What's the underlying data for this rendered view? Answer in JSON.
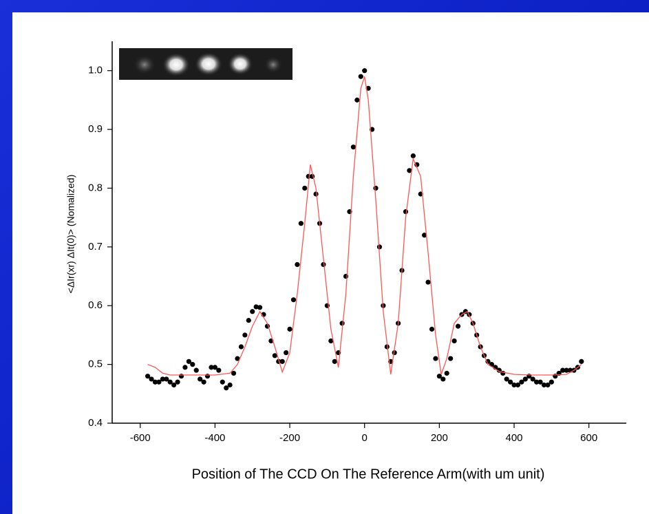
{
  "chart_data": {
    "type": "scatter",
    "x_label": "Position of The CCD On The Reference Arm(with um unit)",
    "y_label": "<ΔIr(xr) ΔIt(0)> (Nomalized)",
    "xlim": [
      -675,
      700
    ],
    "ylim": [
      0.4,
      1.05
    ],
    "xticks": [
      -600,
      -400,
      -200,
      0,
      200,
      400,
      600
    ],
    "yticks": [
      0.4,
      0.5,
      0.6,
      0.7,
      0.8,
      0.9,
      {
        "value": 1,
        "label": "1.0"
      }
    ],
    "series": [
      {
        "type": "scatter",
        "color": "#000000",
        "x": [
          -580,
          -570,
          -560,
          -550,
          -540,
          -530,
          -520,
          -510,
          -500,
          -490,
          -480,
          -470,
          -460,
          -450,
          -440,
          -430,
          -420,
          -410,
          -400,
          -390,
          -380,
          -370,
          -360,
          -350,
          -340,
          -330,
          -320,
          -310,
          -300,
          -290,
          -280,
          -270,
          -260,
          -250,
          -240,
          -230,
          -220,
          -210,
          -200,
          -190,
          -180,
          -170,
          -160,
          -150,
          -140,
          -130,
          -120,
          -110,
          -100,
          -90,
          -80,
          -70,
          -60,
          -50,
          -40,
          -30,
          -20,
          -10,
          0,
          10,
          20,
          30,
          40,
          50,
          60,
          70,
          80,
          90,
          100,
          110,
          120,
          130,
          140,
          150,
          160,
          170,
          180,
          190,
          200,
          210,
          220,
          230,
          240,
          250,
          260,
          270,
          280,
          290,
          300,
          310,
          320,
          330,
          340,
          350,
          360,
          370,
          380,
          390,
          400,
          410,
          420,
          430,
          440,
          450,
          460,
          470,
          480,
          490,
          500,
          510,
          520,
          530,
          540,
          550,
          560,
          570,
          580
        ],
        "values": [
          0.48,
          0.475,
          0.47,
          0.47,
          0.475,
          0.475,
          0.47,
          0.465,
          0.47,
          0.48,
          0.495,
          0.505,
          0.5,
          0.49,
          0.475,
          0.47,
          0.48,
          0.495,
          0.495,
          0.49,
          0.47,
          0.46,
          0.465,
          0.485,
          0.51,
          0.53,
          0.55,
          0.575,
          0.59,
          0.598,
          0.597,
          0.585,
          0.565,
          0.54,
          0.515,
          0.505,
          0.505,
          0.52,
          0.56,
          0.61,
          0.67,
          0.74,
          0.8,
          0.82,
          0.82,
          0.79,
          0.74,
          0.67,
          0.6,
          0.54,
          0.505,
          0.52,
          0.57,
          0.65,
          0.76,
          0.87,
          0.95,
          0.99,
          1.0,
          0.97,
          0.9,
          0.8,
          0.7,
          0.6,
          0.53,
          0.505,
          0.52,
          0.57,
          0.66,
          0.76,
          0.83,
          0.855,
          0.84,
          0.79,
          0.72,
          0.64,
          0.56,
          0.51,
          0.48,
          0.475,
          0.485,
          0.51,
          0.54,
          0.565,
          0.585,
          0.59,
          0.585,
          0.57,
          0.55,
          0.53,
          0.515,
          0.505,
          0.5,
          0.495,
          0.49,
          0.485,
          0.475,
          0.47,
          0.465,
          0.465,
          0.47,
          0.475,
          0.48,
          0.475,
          0.47,
          0.47,
          0.465,
          0.465,
          0.47,
          0.48,
          0.485,
          0.49,
          0.49,
          0.49,
          0.49,
          0.495,
          0.505
        ]
      },
      {
        "type": "line",
        "color": "#ff5555",
        "x": [
          -580,
          -560,
          -540,
          -520,
          -500,
          -450,
          -400,
          -360,
          -340,
          -320,
          -300,
          -280,
          -260,
          -240,
          -220,
          -200,
          -180,
          -160,
          -145,
          -130,
          -110,
          -90,
          -70,
          -50,
          -30,
          -10,
          0,
          10,
          30,
          50,
          70,
          90,
          110,
          130,
          150,
          170,
          190,
          205,
          220,
          240,
          260,
          275,
          290,
          310,
          330,
          360,
          400,
          450,
          500,
          540,
          560,
          580
        ],
        "values": [
          0.5,
          0.495,
          0.485,
          0.482,
          0.482,
          0.482,
          0.482,
          0.485,
          0.5,
          0.53,
          0.565,
          0.59,
          0.57,
          0.53,
          0.487,
          0.52,
          0.62,
          0.74,
          0.84,
          0.8,
          0.68,
          0.56,
          0.495,
          0.62,
          0.82,
          0.97,
          0.99,
          0.95,
          0.78,
          0.59,
          0.483,
          0.57,
          0.75,
          0.85,
          0.82,
          0.69,
          0.55,
          0.483,
          0.51,
          0.57,
          0.585,
          0.59,
          0.57,
          0.53,
          0.5,
          0.488,
          0.483,
          0.482,
          0.482,
          0.483,
          0.49,
          0.5
        ]
      }
    ]
  }
}
